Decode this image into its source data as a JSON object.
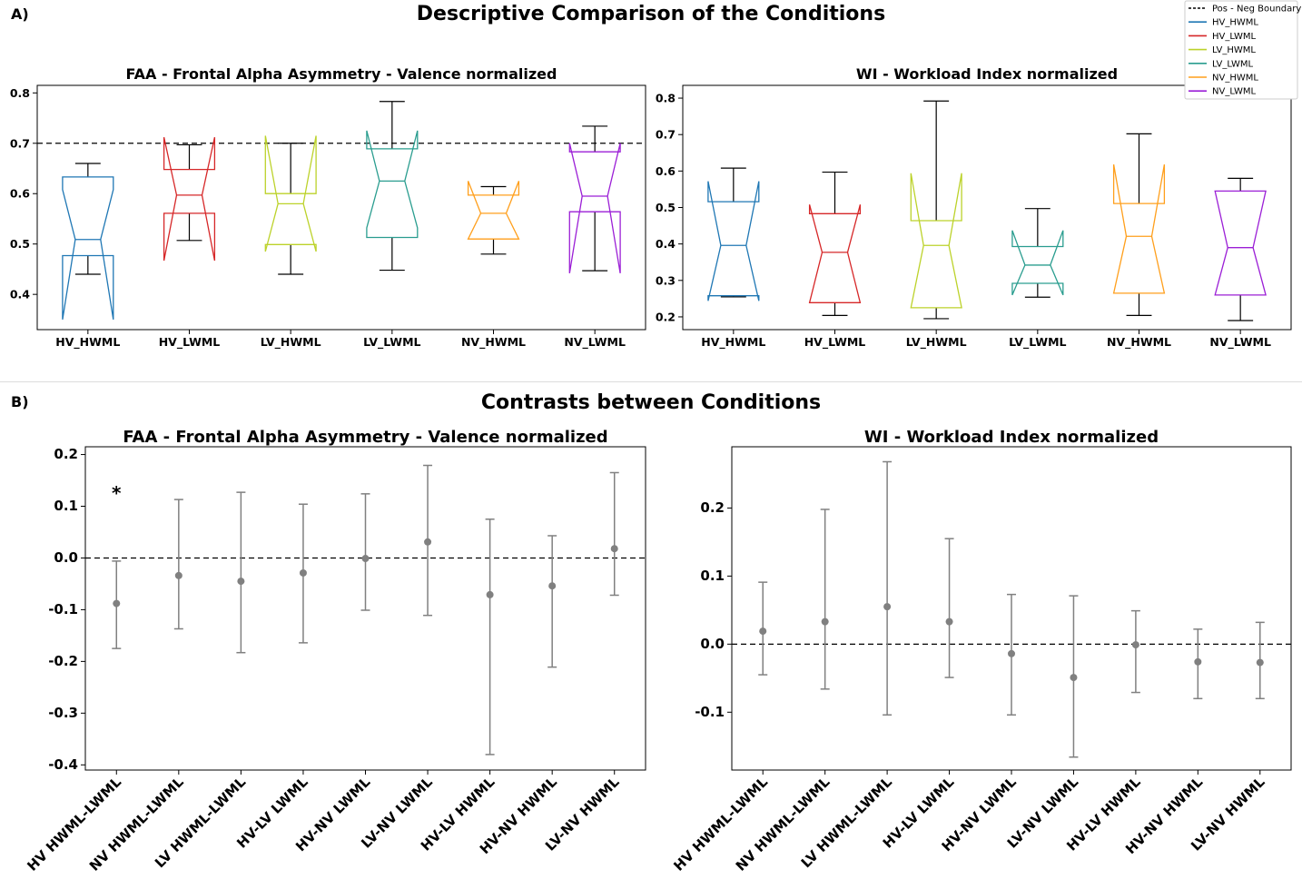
{
  "figure": {
    "label_a": "A)",
    "label_b": "B)",
    "title_a": "Descriptive Comparison of the Conditions",
    "title_b": "Contrasts between Conditions"
  },
  "legend": {
    "entries": [
      {
        "label": "Pos - Neg Boundary",
        "color": "#000000",
        "style": "dashed"
      },
      {
        "label": "HV_HWML",
        "color": "#1f77b4",
        "style": "solid"
      },
      {
        "label": "HV_LWML",
        "color": "#d62728",
        "style": "solid"
      },
      {
        "label": "LV_HWML",
        "color": "#bcd22a",
        "style": "solid"
      },
      {
        "label": "LV_LWML",
        "color": "#2a9d8f",
        "style": "solid"
      },
      {
        "label": "NV_HWML",
        "color": "#ff9f1c",
        "style": "solid"
      },
      {
        "label": "NV_LWML",
        "color": "#9b1fd6",
        "style": "solid"
      }
    ]
  },
  "chart_data": [
    {
      "type": "box",
      "title": "FAA - Frontal Alpha Asymmetry - Valence normalized",
      "ylim": [
        0.33,
        0.815
      ],
      "yticks": [
        "0.4",
        "0.5",
        "0.6",
        "0.7",
        "0.8"
      ],
      "boundary": 0.7,
      "categories": [
        "HV_HWML",
        "HV_LWML",
        "LV_HWML",
        "LV_LWML",
        "NV_HWML",
        "NV_LWML"
      ],
      "boxes": [
        {
          "whislo": 0.44,
          "q1": 0.477,
          "notchlo": 0.35,
          "med": 0.509,
          "notchhi": 0.608,
          "q3": 0.633,
          "whishi": 0.66
        },
        {
          "whislo": 0.507,
          "q1": 0.561,
          "notchlo": 0.467,
          "med": 0.597,
          "notchhi": 0.712,
          "q3": 0.648,
          "whishi": 0.697
        },
        {
          "whislo": 0.44,
          "q1": 0.499,
          "notchlo": 0.485,
          "med": 0.58,
          "notchhi": 0.715,
          "q3": 0.6,
          "whishi": 0.7
        },
        {
          "whislo": 0.448,
          "q1": 0.513,
          "notchlo": 0.532,
          "med": 0.625,
          "notchhi": 0.725,
          "q3": 0.689,
          "whishi": 0.783
        },
        {
          "whislo": 0.48,
          "q1": 0.51,
          "notchlo": 0.51,
          "med": 0.561,
          "notchhi": 0.625,
          "q3": 0.597,
          "whishi": 0.614
        },
        {
          "whislo": 0.447,
          "q1": 0.564,
          "notchlo": 0.442,
          "med": 0.595,
          "notchhi": 0.7,
          "q3": 0.683,
          "whishi": 0.734
        }
      ]
    },
    {
      "type": "box",
      "title": "WI - Workload Index normalized",
      "ylim": [
        0.165,
        0.835
      ],
      "yticks": [
        "0.2",
        "0.3",
        "0.4",
        "0.5",
        "0.6",
        "0.7",
        "0.8"
      ],
      "categories": [
        "HV_HWML",
        "HV_LWML",
        "LV_HWML",
        "LV_LWML",
        "NV_HWML",
        "NV_LWML"
      ],
      "boxes": [
        {
          "whislo": 0.255,
          "q1": 0.258,
          "notchlo": 0.244,
          "med": 0.396,
          "notchhi": 0.572,
          "q3": 0.516,
          "whishi": 0.608
        },
        {
          "whislo": 0.204,
          "q1": 0.239,
          "notchlo": 0.239,
          "med": 0.377,
          "notchhi": 0.508,
          "q3": 0.483,
          "whishi": 0.597
        },
        {
          "whislo": 0.195,
          "q1": 0.225,
          "notchlo": 0.225,
          "med": 0.396,
          "notchhi": 0.594,
          "q3": 0.464,
          "whishi": 0.792
        },
        {
          "whislo": 0.254,
          "q1": 0.292,
          "notchlo": 0.26,
          "med": 0.342,
          "notchhi": 0.437,
          "q3": 0.393,
          "whishi": 0.497
        },
        {
          "whislo": 0.204,
          "q1": 0.265,
          "notchlo": 0.265,
          "med": 0.421,
          "notchhi": 0.618,
          "q3": 0.511,
          "whishi": 0.702
        },
        {
          "whislo": 0.19,
          "q1": 0.26,
          "notchlo": 0.26,
          "med": 0.39,
          "notchhi": 0.545,
          "q3": 0.545,
          "whishi": 0.58
        }
      ]
    },
    {
      "type": "errorbar",
      "title": "FAA - Frontal Alpha Asymmetry - Valence normalized",
      "ylim": [
        -0.41,
        0.215
      ],
      "yticks": [
        "0.2",
        "0.1",
        "0.0",
        "-0.1",
        "-0.2",
        "-0.3",
        "-0.4"
      ],
      "boundary": 0.0,
      "categories": [
        "HV HWML-LWML",
        "NV HWML-LWML",
        "LV HWML-LWML",
        "HV-LV LWML",
        "HV-NV LWML",
        "LV-NV LWML",
        "HV-LV HWML",
        "HV-NV HWML",
        "LV-NV HWML"
      ],
      "points": [
        {
          "est": -0.088,
          "lo": -0.175,
          "hi": -0.006
        },
        {
          "est": -0.034,
          "lo": -0.137,
          "hi": 0.113
        },
        {
          "est": -0.045,
          "lo": -0.183,
          "hi": 0.127
        },
        {
          "est": -0.029,
          "lo": -0.164,
          "hi": 0.104
        },
        {
          "est": -0.001,
          "lo": -0.101,
          "hi": 0.124
        },
        {
          "est": 0.031,
          "lo": -0.111,
          "hi": 0.179
        },
        {
          "est": -0.071,
          "lo": -0.38,
          "hi": 0.075
        },
        {
          "est": -0.054,
          "lo": -0.211,
          "hi": 0.043
        },
        {
          "est": 0.018,
          "lo": -0.072,
          "hi": 0.165
        }
      ],
      "annotation": "*"
    },
    {
      "type": "errorbar",
      "title": "WI - Workload Index normalized",
      "ylim": [
        -0.185,
        0.29
      ],
      "yticks": [
        "0.2",
        "0.1",
        "0.0",
        "-0.1"
      ],
      "boundary": 0.0,
      "categories": [
        "HV HWML-LWML",
        "NV HWML-LWML",
        "LV HWML-LWML",
        "HV-LV LWML",
        "HV-NV LWML",
        "LV-NV LWML",
        "HV-LV HWML",
        "HV-NV HWML",
        "LV-NV HWML"
      ],
      "points": [
        {
          "est": 0.019,
          "lo": -0.045,
          "hi": 0.091
        },
        {
          "est": 0.033,
          "lo": -0.066,
          "hi": 0.198
        },
        {
          "est": 0.055,
          "lo": -0.104,
          "hi": 0.268
        },
        {
          "est": 0.033,
          "lo": -0.049,
          "hi": 0.155
        },
        {
          "est": -0.014,
          "lo": -0.104,
          "hi": 0.073
        },
        {
          "est": -0.049,
          "lo": -0.166,
          "hi": 0.071
        },
        {
          "est": -0.001,
          "lo": -0.071,
          "hi": 0.049
        },
        {
          "est": -0.026,
          "lo": -0.08,
          "hi": 0.022
        },
        {
          "est": -0.027,
          "lo": -0.08,
          "hi": 0.032
        }
      ]
    }
  ]
}
